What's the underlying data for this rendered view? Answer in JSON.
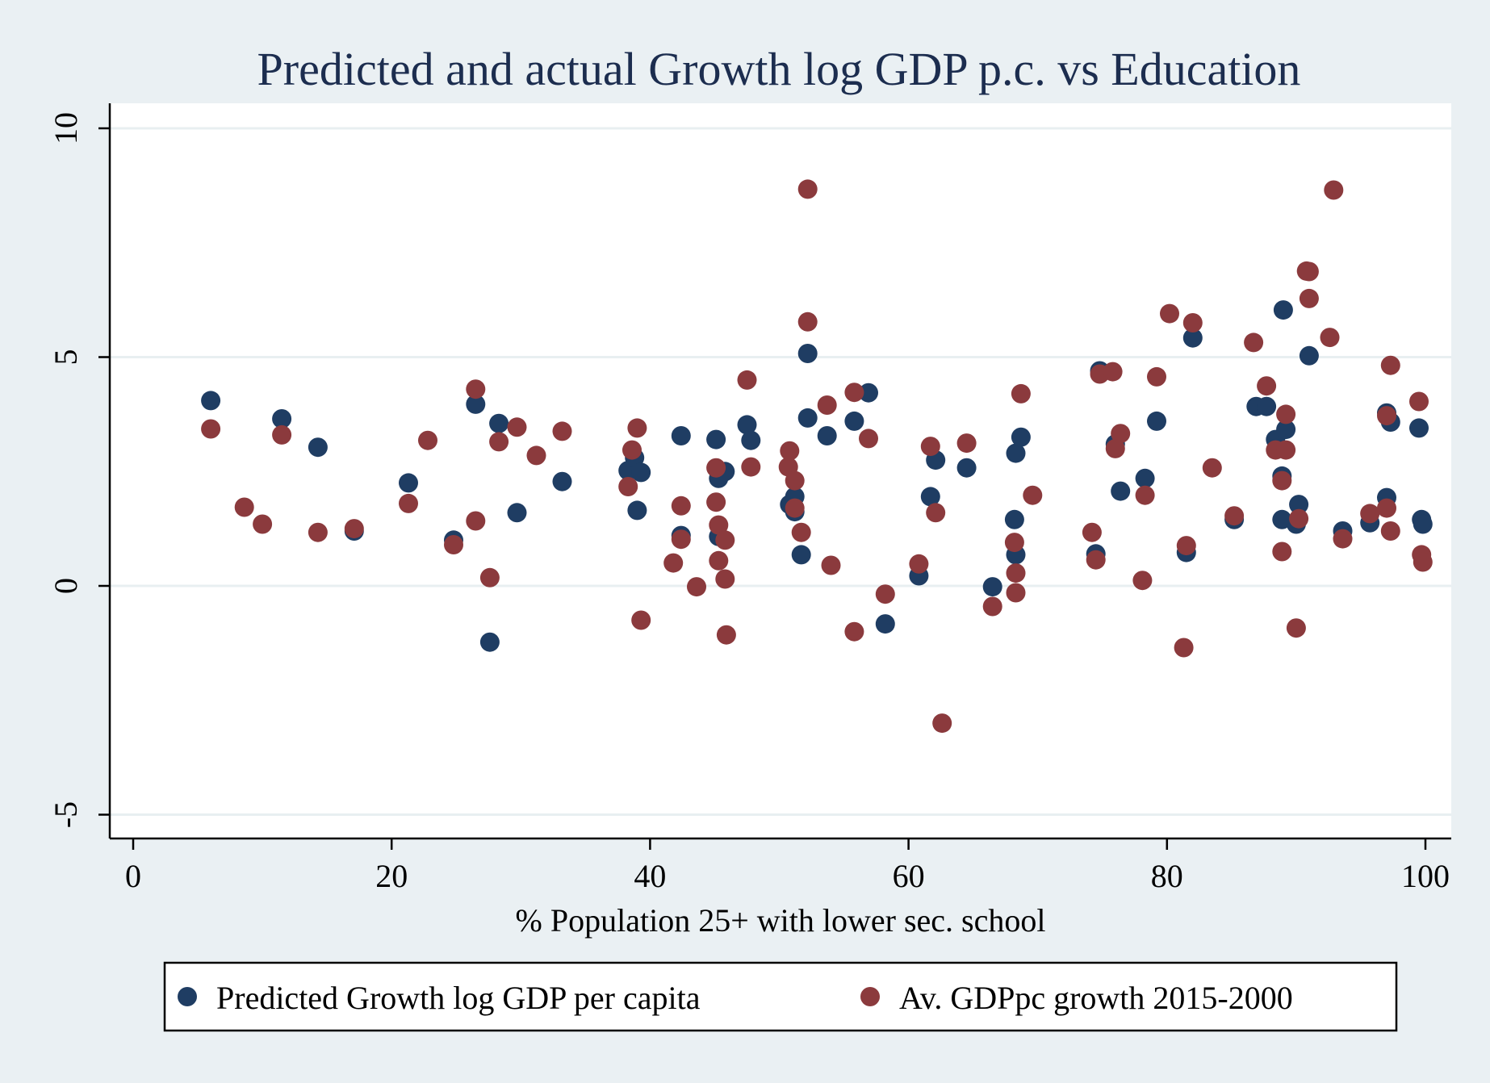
{
  "chart_data": {
    "type": "scatter",
    "title": "Predicted and actual Growth log GDP p.c. vs Education",
    "xlabel": "% Population 25+ with lower sec. school",
    "ylabel": "",
    "xlim": [
      -2,
      101
    ],
    "ylim": [
      -5.5,
      10.5
    ],
    "x_ticks": [
      0,
      20,
      40,
      60,
      80,
      100
    ],
    "y_ticks": [
      -5,
      0,
      5,
      10
    ],
    "x_tick_labels": [
      "0",
      "20",
      "40",
      "60",
      "80",
      "100"
    ],
    "y_tick_labels": [
      "-5",
      "0",
      "5",
      "10"
    ],
    "grid": true,
    "legend_position": "bottom",
    "series": [
      {
        "name": "Predicted Growth log GDP per capita",
        "color": "#1f3d63",
        "points": [
          [
            6.0,
            4.05
          ],
          [
            11.5,
            3.65
          ],
          [
            14.3,
            3.03
          ],
          [
            17.1,
            1.2
          ],
          [
            21.3,
            2.25
          ],
          [
            24.8,
            1.0
          ],
          [
            26.5,
            3.97
          ],
          [
            27.6,
            -1.23
          ],
          [
            28.3,
            3.55
          ],
          [
            29.7,
            1.6
          ],
          [
            33.2,
            2.28
          ],
          [
            38.3,
            2.52
          ],
          [
            38.8,
            2.8
          ],
          [
            39.0,
            1.65
          ],
          [
            39.3,
            2.48
          ],
          [
            42.4,
            3.28
          ],
          [
            42.4,
            1.1
          ],
          [
            45.1,
            3.2
          ],
          [
            45.3,
            2.35
          ],
          [
            45.3,
            1.08
          ],
          [
            45.8,
            2.5
          ],
          [
            47.5,
            3.52
          ],
          [
            47.8,
            3.18
          ],
          [
            50.8,
            1.78
          ],
          [
            51.2,
            1.95
          ],
          [
            51.2,
            1.62
          ],
          [
            51.7,
            0.68
          ],
          [
            52.2,
            5.08
          ],
          [
            52.2,
            3.67
          ],
          [
            53.7,
            3.28
          ],
          [
            55.8,
            3.6
          ],
          [
            56.9,
            4.22
          ],
          [
            58.2,
            -0.83
          ],
          [
            60.8,
            0.22
          ],
          [
            61.7,
            1.95
          ],
          [
            62.1,
            2.75
          ],
          [
            64.5,
            2.58
          ],
          [
            66.5,
            -0.02
          ],
          [
            68.2,
            1.45
          ],
          [
            68.3,
            2.9
          ],
          [
            68.3,
            0.68
          ],
          [
            68.7,
            3.25
          ],
          [
            74.5,
            0.7
          ],
          [
            74.8,
            4.7
          ],
          [
            76.0,
            3.1
          ],
          [
            76.4,
            2.07
          ],
          [
            78.3,
            2.35
          ],
          [
            79.2,
            3.6
          ],
          [
            81.5,
            0.73
          ],
          [
            82.0,
            5.42
          ],
          [
            85.2,
            1.45
          ],
          [
            86.9,
            3.92
          ],
          [
            87.7,
            3.92
          ],
          [
            88.4,
            3.2
          ],
          [
            88.9,
            2.4
          ],
          [
            88.9,
            1.45
          ],
          [
            89.0,
            6.03
          ],
          [
            89.2,
            3.42
          ],
          [
            90.0,
            1.35
          ],
          [
            90.2,
            1.78
          ],
          [
            91.0,
            5.03
          ],
          [
            93.6,
            1.2
          ],
          [
            95.7,
            1.38
          ],
          [
            97.0,
            3.78
          ],
          [
            97.0,
            1.93
          ],
          [
            97.3,
            3.58
          ],
          [
            99.5,
            3.45
          ],
          [
            99.7,
            1.45
          ],
          [
            99.8,
            1.35
          ]
        ]
      },
      {
        "name": "Av. GDPpc growth 2015-2000",
        "color": "#8b3a3d",
        "points": [
          [
            6.0,
            3.43
          ],
          [
            8.6,
            1.72
          ],
          [
            10.0,
            1.35
          ],
          [
            11.5,
            3.3
          ],
          [
            14.3,
            1.17
          ],
          [
            17.1,
            1.25
          ],
          [
            21.3,
            1.8
          ],
          [
            22.8,
            3.18
          ],
          [
            24.8,
            0.9
          ],
          [
            26.5,
            4.3
          ],
          [
            26.5,
            1.42
          ],
          [
            27.6,
            0.18
          ],
          [
            28.3,
            3.15
          ],
          [
            29.7,
            3.47
          ],
          [
            31.2,
            2.85
          ],
          [
            33.2,
            3.38
          ],
          [
            38.3,
            2.17
          ],
          [
            38.6,
            2.97
          ],
          [
            39.0,
            3.45
          ],
          [
            39.3,
            -0.75
          ],
          [
            41.8,
            0.5
          ],
          [
            42.4,
            1.75
          ],
          [
            42.4,
            1.02
          ],
          [
            43.6,
            -0.02
          ],
          [
            45.1,
            2.58
          ],
          [
            45.1,
            1.83
          ],
          [
            45.3,
            1.33
          ],
          [
            45.3,
            0.55
          ],
          [
            45.8,
            1.0
          ],
          [
            45.8,
            0.15
          ],
          [
            45.9,
            -1.07
          ],
          [
            47.5,
            4.5
          ],
          [
            47.8,
            2.6
          ],
          [
            50.7,
            2.6
          ],
          [
            50.8,
            2.95
          ],
          [
            51.2,
            2.3
          ],
          [
            51.2,
            1.7
          ],
          [
            51.7,
            1.17
          ],
          [
            52.2,
            8.67
          ],
          [
            52.2,
            5.77
          ],
          [
            53.7,
            3.95
          ],
          [
            54.0,
            0.45
          ],
          [
            55.8,
            4.23
          ],
          [
            55.8,
            -1.0
          ],
          [
            56.9,
            3.22
          ],
          [
            58.2,
            -0.18
          ],
          [
            60.8,
            0.48
          ],
          [
            61.7,
            3.05
          ],
          [
            62.1,
            1.6
          ],
          [
            62.6,
            -3.0
          ],
          [
            64.5,
            3.12
          ],
          [
            66.5,
            -0.45
          ],
          [
            68.2,
            0.95
          ],
          [
            68.3,
            0.28
          ],
          [
            68.3,
            -0.15
          ],
          [
            68.7,
            4.2
          ],
          [
            69.6,
            1.98
          ],
          [
            74.2,
            1.17
          ],
          [
            74.5,
            0.57
          ],
          [
            74.8,
            4.63
          ],
          [
            75.8,
            4.68
          ],
          [
            76.0,
            3.0
          ],
          [
            76.4,
            3.33
          ],
          [
            78.1,
            0.12
          ],
          [
            78.3,
            1.98
          ],
          [
            79.2,
            4.57
          ],
          [
            80.2,
            5.95
          ],
          [
            81.3,
            -1.35
          ],
          [
            81.5,
            0.88
          ],
          [
            82.0,
            5.75
          ],
          [
            83.5,
            2.58
          ],
          [
            85.2,
            1.53
          ],
          [
            86.7,
            5.32
          ],
          [
            87.7,
            4.37
          ],
          [
            88.4,
            2.97
          ],
          [
            88.9,
            2.3
          ],
          [
            88.9,
            0.75
          ],
          [
            89.2,
            3.75
          ],
          [
            89.2,
            2.97
          ],
          [
            90.0,
            -0.92
          ],
          [
            90.2,
            1.47
          ],
          [
            90.8,
            6.88
          ],
          [
            91.0,
            6.87
          ],
          [
            91.0,
            6.28
          ],
          [
            92.6,
            5.43
          ],
          [
            92.9,
            8.65
          ],
          [
            93.6,
            1.03
          ],
          [
            95.7,
            1.58
          ],
          [
            97.0,
            3.72
          ],
          [
            97.0,
            1.7
          ],
          [
            97.3,
            4.82
          ],
          [
            97.3,
            1.2
          ],
          [
            99.5,
            4.03
          ],
          [
            99.7,
            0.68
          ],
          [
            99.8,
            0.52
          ]
        ]
      }
    ]
  }
}
